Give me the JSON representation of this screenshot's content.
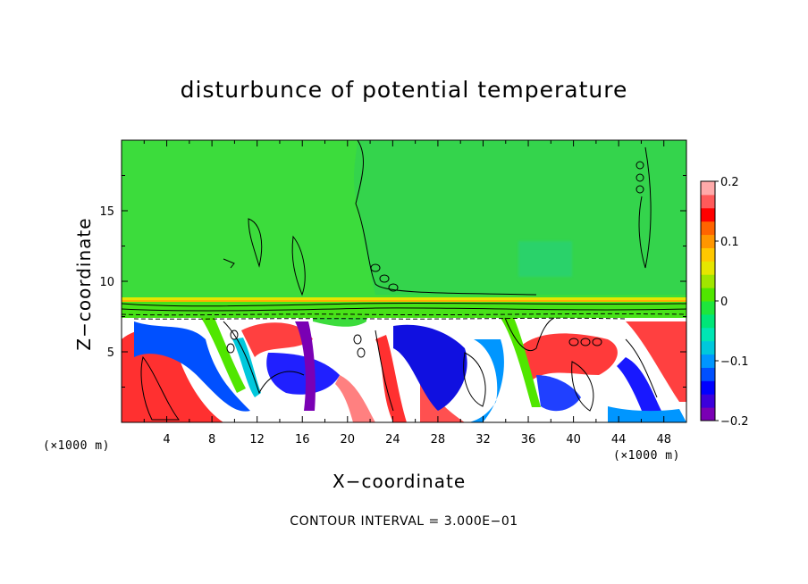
{
  "chart_data": {
    "type": "heatmap",
    "title": "disturbunce of potential temperature",
    "xlabel": "X−coordinate",
    "ylabel": "Z−coordinate",
    "x_unit": "(×1000 m)",
    "z_unit": "(×1000 m)",
    "xlim": [
      0,
      50
    ],
    "ylim": [
      0,
      20
    ],
    "x_ticks": [
      "4",
      "8",
      "12",
      "16",
      "20",
      "24",
      "28",
      "32",
      "36",
      "40",
      "44",
      "48"
    ],
    "y_ticks": [
      "5",
      "10",
      "15"
    ],
    "colorbar": {
      "range": [
        -0.2,
        0.2
      ],
      "tick_labels": [
        "0.2",
        "0.1",
        "0",
        "−0.1",
        "−0.2"
      ],
      "colors": [
        "#7a00b4",
        "#3c00dc",
        "#0000ff",
        "#0050ff",
        "#0096ff",
        "#00c8dc",
        "#00e6b4",
        "#00e678",
        "#1ee63c",
        "#50e600",
        "#a0e600",
        "#e6e600",
        "#ffc800",
        "#ff9600",
        "#ff6400",
        "#ff0000",
        "#ff5a5a",
        "#ffaaaa"
      ]
    },
    "background_value": 0,
    "annotation": "CONTOUR INTERVAL = 3.000E−01"
  }
}
